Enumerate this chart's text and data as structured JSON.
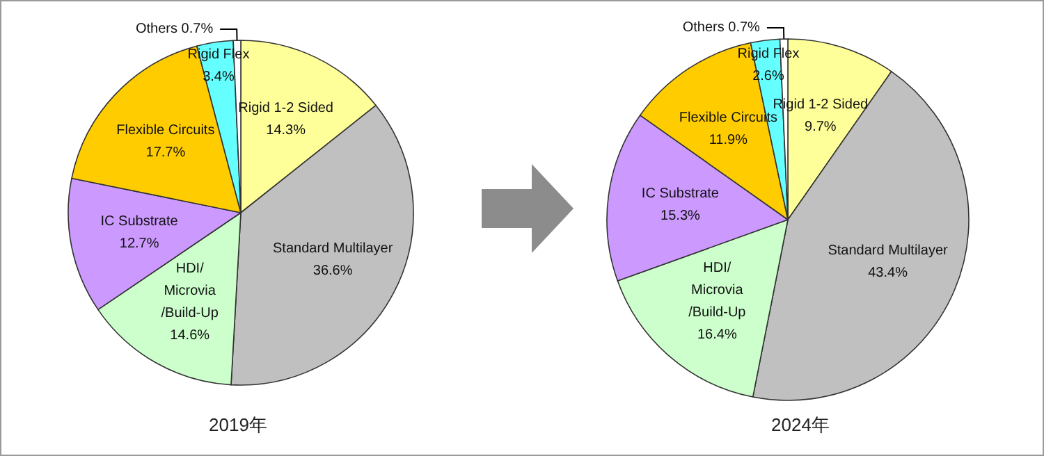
{
  "chart_data": [
    {
      "type": "pie",
      "title": "2019年",
      "categories": [
        "Rigid 1-2 Sided",
        "Standard Multilayer",
        "HDI/\nMicrovia\n/Build-Up",
        "IC Substrate",
        "Flexible Circuits",
        "Rigid Flex",
        "Others"
      ],
      "values": [
        14.3,
        36.6,
        14.6,
        12.7,
        17.7,
        3.4,
        0.7
      ],
      "value_labels": [
        "14.3%",
        "36.6%",
        "14.6%",
        "12.7%",
        "17.7%",
        "3.4%",
        "0.7%"
      ],
      "colors": [
        "#ffff99",
        "#c0c0c0",
        "#ccffcc",
        "#cc99ff",
        "#ffcc00",
        "#66ffff",
        "#ffffff"
      ],
      "legend": false
    },
    {
      "type": "pie",
      "title": "2024年",
      "categories": [
        "Rigid 1-2 Sided",
        "Standard Multilayer",
        "HDI/\nMicrovia\n/Build-Up",
        "IC Substrate",
        "Flexible Circuits",
        "Rigid Flex",
        "Others"
      ],
      "values": [
        9.7,
        43.4,
        16.4,
        15.3,
        11.9,
        2.6,
        0.7
      ],
      "value_labels": [
        "9.7%",
        "43.4%",
        "16.4%",
        "15.3%",
        "11.9%",
        "2.6%",
        "0.7%"
      ],
      "colors": [
        "#ffff99",
        "#c0c0c0",
        "#ccffcc",
        "#cc99ff",
        "#ffcc00",
        "#66ffff",
        "#ffffff"
      ],
      "legend": false
    }
  ]
}
